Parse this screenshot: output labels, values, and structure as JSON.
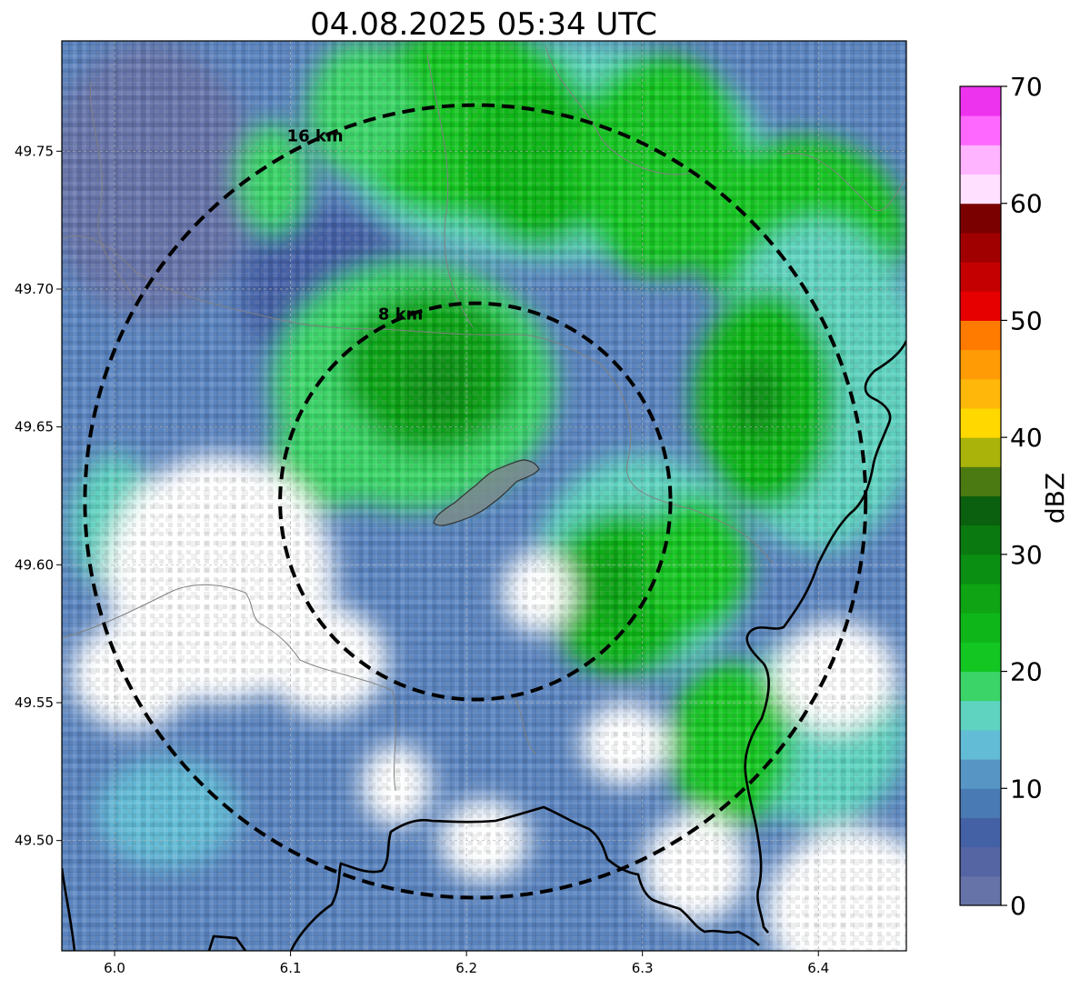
{
  "title": "04.08.2025 05:34 UTC",
  "map": {
    "lon_range": [
      5.97,
      6.45
    ],
    "lat_range": [
      49.46,
      49.79
    ],
    "radar_center": {
      "lon": 6.205,
      "lat": 49.623
    },
    "lon_ticks": [
      {
        "value": 6.0,
        "label": "6.0"
      },
      {
        "value": 6.1,
        "label": "6.1"
      },
      {
        "value": 6.2,
        "label": "6.2"
      },
      {
        "value": 6.3,
        "label": "6.3"
      },
      {
        "value": 6.4,
        "label": "6.4"
      }
    ],
    "lat_ticks": [
      {
        "value": 49.5,
        "label": "49.50"
      },
      {
        "value": 49.55,
        "label": "49.55"
      },
      {
        "value": 49.6,
        "label": "49.60"
      },
      {
        "value": 49.65,
        "label": "49.65"
      },
      {
        "value": 49.7,
        "label": "49.70"
      },
      {
        "value": 49.75,
        "label": "49.75"
      }
    ],
    "range_rings": [
      {
        "label": "8 km",
        "radius_km": 8
      },
      {
        "label": "16 km",
        "radius_km": 16
      }
    ],
    "grid": true,
    "colors": {
      "frame": "#000000",
      "grid": "#b0b0b0",
      "ring": "#000000",
      "border": "#000000",
      "admin": "#808080",
      "city": "#7a8a8c"
    },
    "reflectivity_zones": [
      {
        "level": 0.5,
        "lon": 6.02,
        "lat": 49.74,
        "r_lon": 0.06,
        "r_lat": 0.05
      },
      {
        "level": 7,
        "lon": 6.12,
        "lat": 49.7,
        "r_lon": 0.05,
        "r_lat": 0.03
      },
      {
        "level": 16,
        "lon": 6.25,
        "lat": 49.75,
        "r_lon": 0.12,
        "r_lat": 0.04
      },
      {
        "level": 22,
        "lon": 6.2,
        "lat": 49.76,
        "r_lon": 0.07,
        "r_lat": 0.035
      },
      {
        "level": 24,
        "lon": 6.24,
        "lat": 49.745,
        "r_lon": 0.04,
        "r_lat": 0.03
      },
      {
        "level": 22,
        "lon": 6.31,
        "lat": 49.745,
        "r_lon": 0.05,
        "r_lat": 0.04
      },
      {
        "level": 22,
        "lon": 6.39,
        "lat": 49.72,
        "r_lon": 0.06,
        "r_lat": 0.035
      },
      {
        "level": 19,
        "lon": 6.14,
        "lat": 49.765,
        "r_lon": 0.03,
        "r_lat": 0.025
      },
      {
        "level": 19,
        "lon": 6.09,
        "lat": 49.74,
        "r_lon": 0.02,
        "r_lat": 0.02
      },
      {
        "level": 18,
        "lon": 6.17,
        "lat": 49.665,
        "r_lon": 0.08,
        "r_lat": 0.045
      },
      {
        "level": 25,
        "lon": 6.18,
        "lat": 49.67,
        "r_lon": 0.05,
        "r_lat": 0.03
      },
      {
        "level": 28,
        "lon": 6.185,
        "lat": 49.665,
        "r_lon": 0.02,
        "r_lat": 0.015
      },
      {
        "level": 18,
        "lon": 6.12,
        "lat": 49.64,
        "r_lon": 0.03,
        "r_lat": 0.02
      },
      {
        "level": 17,
        "lon": 6.4,
        "lat": 49.665,
        "r_lon": 0.06,
        "r_lat": 0.06
      },
      {
        "level": 24,
        "lon": 6.37,
        "lat": 49.66,
        "r_lon": 0.04,
        "r_lat": 0.04
      },
      {
        "level": 28,
        "lon": 6.365,
        "lat": 49.66,
        "r_lon": 0.015,
        "r_lat": 0.015
      },
      {
        "level": 17,
        "lon": 6.3,
        "lat": 49.6,
        "r_lon": 0.06,
        "r_lat": 0.04
      },
      {
        "level": 23,
        "lon": 6.29,
        "lat": 49.59,
        "r_lon": 0.045,
        "r_lat": 0.03
      },
      {
        "level": 26,
        "lon": 6.285,
        "lat": 49.593,
        "r_lon": 0.02,
        "r_lat": 0.015
      },
      {
        "level": 21,
        "lon": 6.33,
        "lat": 49.6,
        "r_lon": 0.03,
        "r_lat": 0.025
      },
      {
        "level": 15,
        "lon": 6.4,
        "lat": 49.54,
        "r_lon": 0.05,
        "r_lat": 0.035
      },
      {
        "level": 22,
        "lon": 6.35,
        "lat": 49.535,
        "r_lon": 0.035,
        "r_lat": 0.03
      },
      {
        "level": 15,
        "lon": 6.0,
        "lat": 49.615,
        "r_lon": 0.025,
        "r_lat": 0.025
      },
      {
        "level": 14,
        "lon": 6.03,
        "lat": 49.51,
        "r_lon": 0.04,
        "r_lat": 0.02
      },
      {
        "level": -5,
        "lon": 6.06,
        "lat": 49.595,
        "r_lon": 0.065,
        "r_lat": 0.045
      },
      {
        "level": -5,
        "lon": 6.12,
        "lat": 49.565,
        "r_lon": 0.035,
        "r_lat": 0.02
      },
      {
        "level": -4,
        "lon": 6.01,
        "lat": 49.56,
        "r_lon": 0.035,
        "r_lat": 0.02
      },
      {
        "level": -4,
        "lon": 6.41,
        "lat": 49.56,
        "r_lon": 0.035,
        "r_lat": 0.02
      },
      {
        "level": -4,
        "lon": 6.42,
        "lat": 49.475,
        "r_lon": 0.05,
        "r_lat": 0.03
      },
      {
        "level": -3,
        "lon": 6.33,
        "lat": 49.49,
        "r_lon": 0.03,
        "r_lat": 0.02
      },
      {
        "level": -3,
        "lon": 6.29,
        "lat": 49.535,
        "r_lon": 0.025,
        "r_lat": 0.015
      },
      {
        "level": -3,
        "lon": 6.21,
        "lat": 49.5,
        "r_lon": 0.025,
        "r_lat": 0.015
      },
      {
        "level": -3,
        "lon": 6.24,
        "lat": 49.59,
        "r_lon": 0.02,
        "r_lat": 0.015
      },
      {
        "level": -3,
        "lon": 6.16,
        "lat": 49.52,
        "r_lon": 0.02,
        "r_lat": 0.015
      }
    ]
  },
  "colorbar": {
    "label": "dBZ",
    "vmin": 0,
    "vmax": 70,
    "ticks": [
      {
        "value": 0,
        "label": "0"
      },
      {
        "value": 10,
        "label": "10"
      },
      {
        "value": 20,
        "label": "20"
      },
      {
        "value": 30,
        "label": "30"
      },
      {
        "value": 40,
        "label": "40"
      },
      {
        "value": 50,
        "label": "50"
      },
      {
        "value": 60,
        "label": "60"
      },
      {
        "value": 70,
        "label": "70"
      }
    ],
    "bins": [
      "#6673a8",
      "#5565a3",
      "#4461a6",
      "#4a7ab3",
      "#5796c4",
      "#62bcd6",
      "#5fd3c0",
      "#3ad468",
      "#13c622",
      "#0fb619",
      "#0ea414",
      "#0b8f12",
      "#0a7a10",
      "#0a600e",
      "#4b7a12",
      "#aab30a",
      "#ffd800",
      "#ffb70a",
      "#ff9c05",
      "#ff7b00",
      "#e60000",
      "#c40000",
      "#a00000",
      "#7a0000",
      "#ffe0ff",
      "#ffb4ff",
      "#ff68ff",
      "#ee33ee"
    ]
  }
}
